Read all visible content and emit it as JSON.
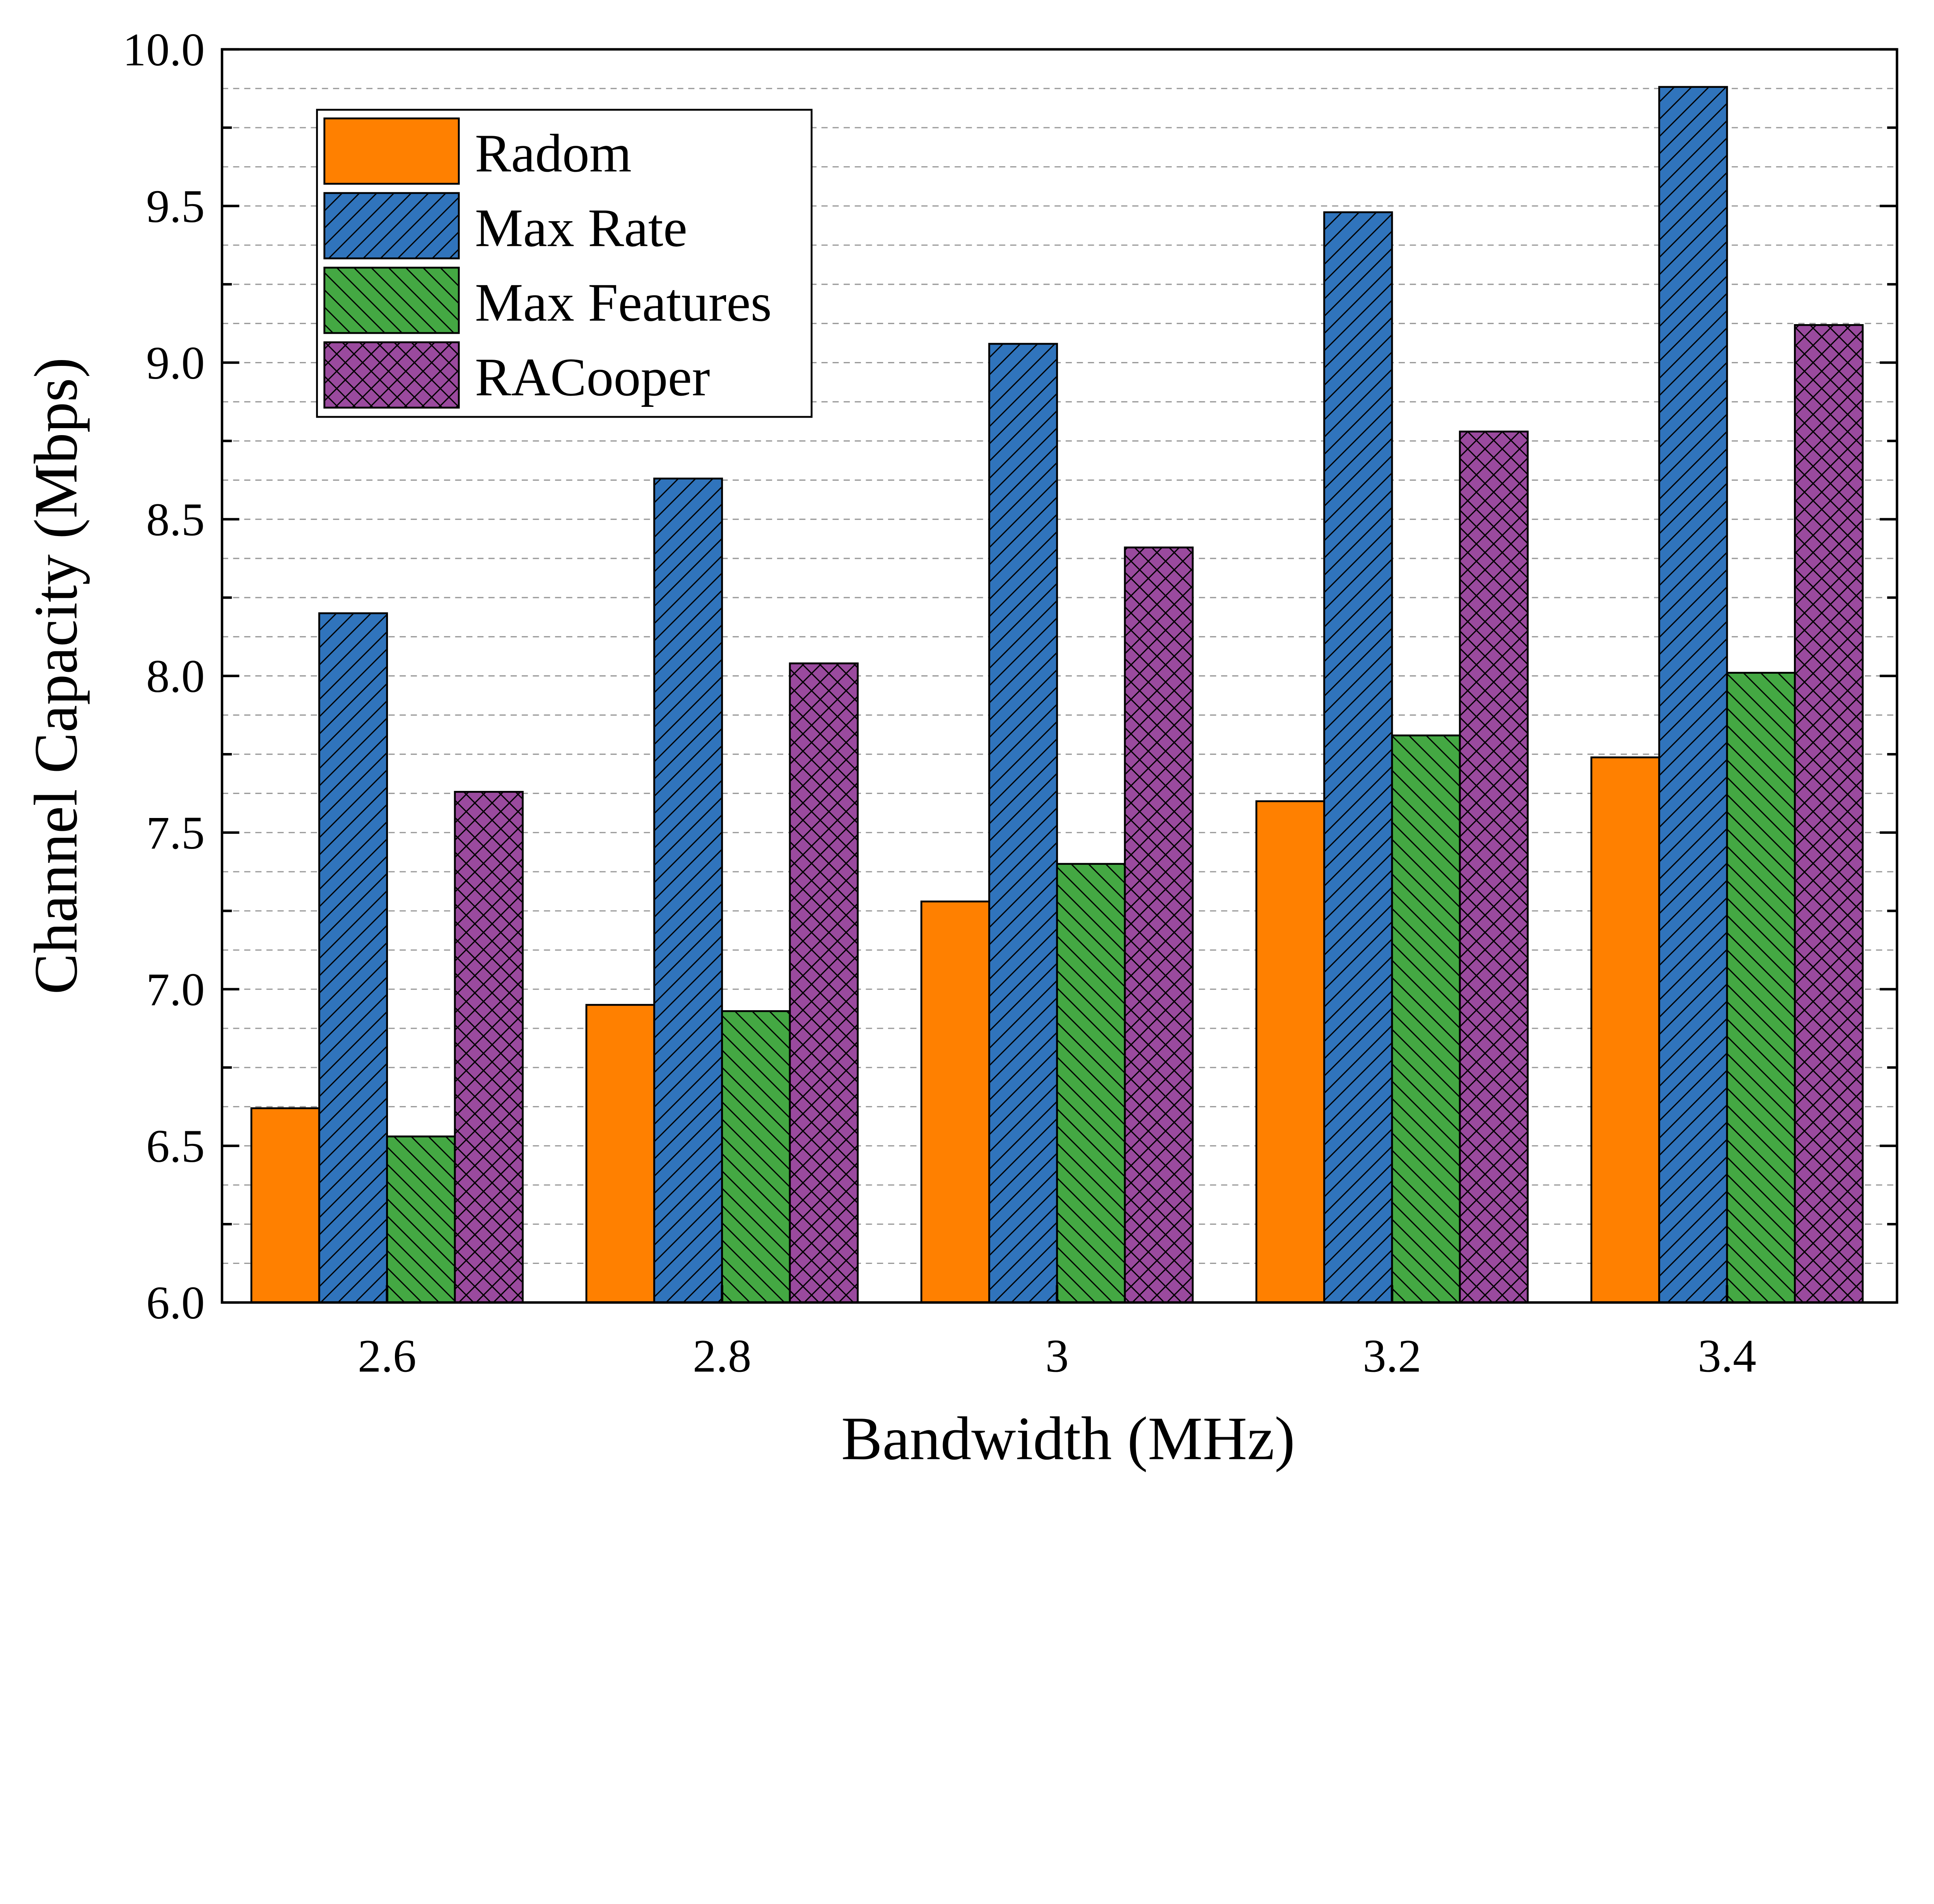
{
  "chart_data": {
    "type": "bar",
    "title": "",
    "xlabel": "Bandwidth (MHz)",
    "ylabel": "Channel Capacity (Mbps)",
    "ylim": [
      6.0,
      10.0
    ],
    "yticks": [
      "6.0",
      "6.5",
      "7.0",
      "7.5",
      "8.0",
      "8.5",
      "9.0",
      "9.5",
      "10.0"
    ],
    "grid": "horizontal dashed",
    "legend_position": "top-left",
    "categories": [
      "2.6",
      "2.8",
      "3",
      "3.2",
      "3.4"
    ],
    "series": [
      {
        "name": "Radom",
        "color": "#FF8000",
        "pattern": "solid",
        "values": [
          6.62,
          6.95,
          7.28,
          7.6,
          7.74
        ]
      },
      {
        "name": "Max Rate",
        "color": "#3074BC",
        "pattern": "forward-diagonal",
        "values": [
          8.2,
          8.63,
          9.06,
          9.48,
          9.88
        ]
      },
      {
        "name": "Max Features",
        "color": "#44A843",
        "pattern": "back-diagonal",
        "values": [
          6.53,
          6.93,
          7.4,
          7.81,
          8.01
        ]
      },
      {
        "name": "RACooper",
        "color": "#9A4A9E",
        "pattern": "crosshatch",
        "values": [
          7.63,
          8.04,
          8.41,
          8.78,
          9.12
        ]
      }
    ]
  }
}
